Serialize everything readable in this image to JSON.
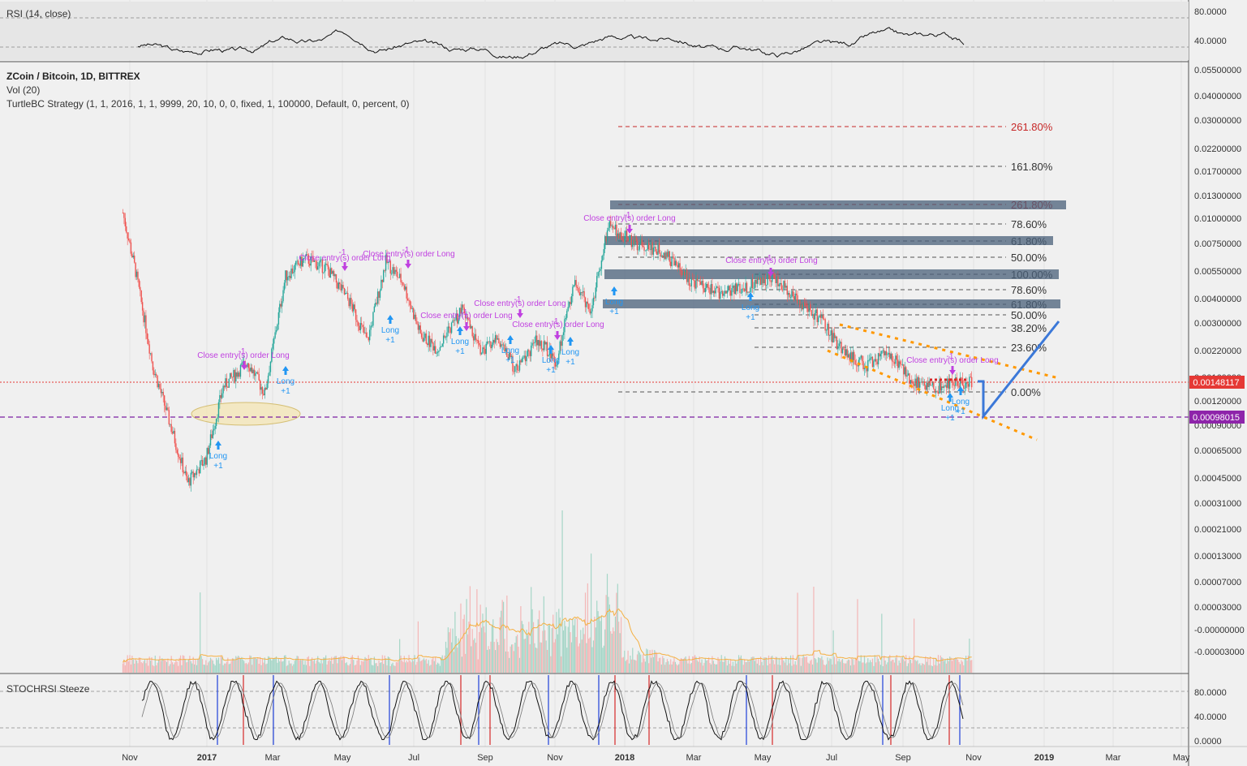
{
  "header": {
    "rsi_label": "RSI (14, close)",
    "symbol_line": "ZCoin / Bitcoin, 1D, BITTREX",
    "vol_label": "Vol (20)",
    "strategy_label": "TurtleBC Strategy (1, 1, 2016, 1, 1, 9999, 20, 10, 0, 0, fixed, 1, 100000, Default, 0, percent, 0)",
    "stoch_label": "STOCHRSI Steeze"
  },
  "colors": {
    "background": "#f0f0f0",
    "price_line": "#e53935",
    "support_line": "#7b1fa2",
    "long_marker": "#2196f3",
    "close_marker": "#c040e0",
    "zone_fill": "#4a6079",
    "channel": "#ff9800",
    "projection": "#3b78d8",
    "fib_red": "#c62828",
    "ellipse_fill": "#f5e6b0",
    "volume_up": "#a5d6c7",
    "volume_down": "#f4b6b6",
    "volume_ma": "#f5b042"
  },
  "axes": {
    "rsi_ticks": [
      "80.0000",
      "40.0000"
    ],
    "price_ticks": [
      "0.05500000",
      "0.04000000",
      "0.03000000",
      "0.02200000",
      "0.01700000",
      "0.01300000",
      "0.01000000",
      "0.00750000",
      "0.00550000",
      "0.00400000",
      "0.00300000",
      "0.00220000",
      "0.00160000",
      "0.00120000",
      "0.00090000",
      "0.00065000",
      "0.00045000",
      "0.00031000",
      "0.00021000",
      "0.00013000",
      "0.00007000",
      "0.00003000",
      "-0.00000000",
      "-0.00003000"
    ],
    "stoch_ticks": [
      "80.0000",
      "40.0000",
      "0.0000"
    ],
    "time_ticks": [
      "Nov",
      "2017",
      "Mar",
      "May",
      "Jul",
      "Sep",
      "Nov",
      "2018",
      "Mar",
      "May",
      "Jul",
      "Sep",
      "Nov",
      "2019",
      "Mar",
      "May"
    ],
    "current_price": "0.00148117",
    "support_price": "0.00098015"
  },
  "fib_upper": [
    "261.80%",
    "161.80%",
    "261.80%",
    "78.60%",
    "61.80%",
    "50.00%",
    "100.00%",
    "78.60%",
    "61.80%",
    "50.00%",
    "38.20%",
    "23.60%",
    "0.00%"
  ],
  "signals": {
    "close_text": "Close entry(s) order Long",
    "long_text": "Long",
    "plus": "+1",
    "minus": "-1"
  },
  "chart_data": {
    "type": "candlestick",
    "title": "ZCoin / Bitcoin, 1D, BITTREX",
    "xlabel": "",
    "ylabel": "",
    "x_range": [
      "2016-10",
      "2019-05"
    ],
    "y_scale": "log",
    "current_price": 0.00148117,
    "support_level": 0.00098015,
    "fib_levels_upper": [
      {
        "label": "261.80%"
      },
      {
        "label": "161.80%"
      },
      {
        "label": "261.80%"
      },
      {
        "label": "78.60%"
      },
      {
        "label": "61.80%"
      },
      {
        "label": "50.00%"
      }
    ],
    "fib_levels_lower": [
      {
        "label": "100.00%"
      },
      {
        "label": "78.60%"
      },
      {
        "label": "61.80%"
      },
      {
        "label": "50.00%"
      },
      {
        "label": "38.20%"
      },
      {
        "label": "23.60%"
      },
      {
        "label": "0.00%"
      }
    ],
    "approx_close_path": [
      [
        "2016-10-25",
        0.011
      ],
      [
        "2016-11-05",
        0.0055
      ],
      [
        "2016-11-20",
        0.0018
      ],
      [
        "2016-12-05",
        0.0009
      ],
      [
        "2016-12-20",
        0.00045
      ],
      [
        "2017-01-05",
        0.0006
      ],
      [
        "2017-01-20",
        0.0014
      ],
      [
        "2017-02-10",
        0.0019
      ],
      [
        "2017-02-25",
        0.0013
      ],
      [
        "2017-03-15",
        0.0052
      ],
      [
        "2017-04-01",
        0.0064
      ],
      [
        "2017-04-20",
        0.0057
      ],
      [
        "2017-05-10",
        0.0038
      ],
      [
        "2017-05-25",
        0.0024
      ],
      [
        "2017-06-10",
        0.0062
      ],
      [
        "2017-06-25",
        0.0048
      ],
      [
        "2017-07-10",
        0.0026
      ],
      [
        "2017-07-25",
        0.0022
      ],
      [
        "2017-08-15",
        0.0035
      ],
      [
        "2017-09-01",
        0.0021
      ],
      [
        "2017-09-15",
        0.0025
      ],
      [
        "2017-10-01",
        0.0017
      ],
      [
        "2017-10-20",
        0.0025
      ],
      [
        "2017-11-05",
        0.0019
      ],
      [
        "2017-11-20",
        0.0048
      ],
      [
        "2017-12-05",
        0.0035
      ],
      [
        "2017-12-20",
        0.0095
      ],
      [
        "2018-01-10",
        0.0078
      ],
      [
        "2018-02-05",
        0.007
      ],
      [
        "2018-03-01",
        0.0049
      ],
      [
        "2018-03-25",
        0.0043
      ],
      [
        "2018-04-20",
        0.0046
      ],
      [
        "2018-05-10",
        0.0052
      ],
      [
        "2018-06-01",
        0.004
      ],
      [
        "2018-06-20",
        0.0032
      ],
      [
        "2018-07-10",
        0.0022
      ],
      [
        "2018-08-01",
        0.0018
      ],
      [
        "2018-08-20",
        0.0021
      ],
      [
        "2018-09-10",
        0.0015
      ],
      [
        "2018-10-01",
        0.0014
      ],
      [
        "2018-10-20",
        0.0015
      ],
      [
        "2018-10-31",
        0.00148
      ]
    ],
    "rsi_range": [
      20,
      90
    ],
    "stoch_range": [
      0,
      100
    ]
  }
}
